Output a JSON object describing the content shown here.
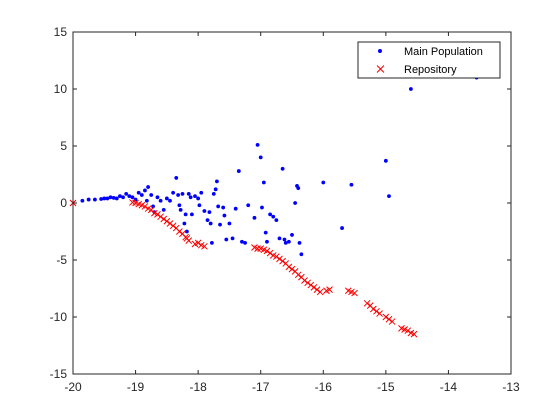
{
  "chart_data": {
    "type": "scatter",
    "title": "",
    "xlabel": "",
    "ylabel": "",
    "xlim": [
      -20,
      -13
    ],
    "ylim": [
      -15,
      15
    ],
    "xticks": [
      -20,
      -19,
      -18,
      -17,
      -16,
      -15,
      -14,
      -13
    ],
    "yticks": [
      -15,
      -10,
      -5,
      0,
      5,
      10,
      15
    ],
    "grid": false,
    "legend_position": "top-right",
    "series": [
      {
        "name": "Main Population",
        "marker": "dot",
        "color": "#0000ff",
        "points": [
          [
            -19.85,
            0.2
          ],
          [
            -19.75,
            0.3
          ],
          [
            -19.65,
            0.3
          ],
          [
            -19.55,
            0.35
          ],
          [
            -19.5,
            0.4
          ],
          [
            -19.45,
            0.4
          ],
          [
            -19.4,
            0.5
          ],
          [
            -19.35,
            0.45
          ],
          [
            -19.3,
            0.4
          ],
          [
            -19.25,
            0.6
          ],
          [
            -19.2,
            0.5
          ],
          [
            -19.15,
            0.8
          ],
          [
            -19.1,
            0.6
          ],
          [
            -19.05,
            0.5
          ],
          [
            -19.0,
            0.3
          ],
          [
            -18.95,
            0.9
          ],
          [
            -18.9,
            0.7
          ],
          [
            -18.85,
            1.1
          ],
          [
            -18.8,
            1.4
          ],
          [
            -18.82,
            0.2
          ],
          [
            -18.75,
            0.7
          ],
          [
            -18.72,
            -0.3
          ],
          [
            -18.7,
            -0.8
          ],
          [
            -18.65,
            0.5
          ],
          [
            -18.6,
            0.2
          ],
          [
            -18.55,
            -0.6
          ],
          [
            -18.5,
            0.4
          ],
          [
            -18.45,
            0.2
          ],
          [
            -18.4,
            0.9
          ],
          [
            -18.35,
            2.2
          ],
          [
            -18.32,
            0.7
          ],
          [
            -18.3,
            -0.2
          ],
          [
            -18.28,
            -0.6
          ],
          [
            -18.25,
            0.8
          ],
          [
            -18.22,
            -1.8
          ],
          [
            -18.2,
            -1.0
          ],
          [
            -18.18,
            -2.5
          ],
          [
            -18.15,
            0.8
          ],
          [
            -18.12,
            0.5
          ],
          [
            -18.1,
            -1.0
          ],
          [
            -18.05,
            0.6
          ],
          [
            -18.0,
            0.4
          ],
          [
            -17.98,
            -0.2
          ],
          [
            -17.95,
            0.9
          ],
          [
            -17.9,
            -0.7
          ],
          [
            -17.85,
            -1.5
          ],
          [
            -17.82,
            -0.8
          ],
          [
            -17.8,
            -1.8
          ],
          [
            -17.78,
            -3.5
          ],
          [
            -17.75,
            0.8
          ],
          [
            -17.72,
            1.2
          ],
          [
            -17.7,
            1.9
          ],
          [
            -17.68,
            -0.3
          ],
          [
            -17.65,
            -1.9
          ],
          [
            -17.6,
            -0.4
          ],
          [
            -17.58,
            -1.1
          ],
          [
            -17.55,
            -3.2
          ],
          [
            -17.5,
            -1.8
          ],
          [
            -17.45,
            -3.1
          ],
          [
            -17.4,
            -0.5
          ],
          [
            -17.35,
            2.8
          ],
          [
            -17.3,
            -3.4
          ],
          [
            -17.25,
            -3.5
          ],
          [
            -17.2,
            -0.2
          ],
          [
            -17.1,
            -1.3
          ],
          [
            -17.05,
            5.1
          ],
          [
            -17.0,
            4.0
          ],
          [
            -16.98,
            -0.4
          ],
          [
            -16.95,
            1.8
          ],
          [
            -16.92,
            -2.6
          ],
          [
            -16.9,
            -3.4
          ],
          [
            -16.85,
            -1.0
          ],
          [
            -16.8,
            -1.2
          ],
          [
            -16.75,
            -1.5
          ],
          [
            -16.7,
            -3.1
          ],
          [
            -16.65,
            3.0
          ],
          [
            -16.62,
            -3.2
          ],
          [
            -16.6,
            -3.5
          ],
          [
            -16.55,
            -3.4
          ],
          [
            -16.5,
            -2.8
          ],
          [
            -16.45,
            0.0
          ],
          [
            -16.42,
            1.5
          ],
          [
            -16.4,
            1.3
          ],
          [
            -16.38,
            -3.5
          ],
          [
            -16.35,
            -4.5
          ],
          [
            -16.0,
            1.8
          ],
          [
            -15.7,
            -2.2
          ],
          [
            -15.55,
            1.6
          ],
          [
            -15.0,
            3.7
          ],
          [
            -14.95,
            0.6
          ],
          [
            -14.6,
            10.0
          ],
          [
            -13.55,
            11.0
          ]
        ]
      },
      {
        "name": "Repository",
        "marker": "cross",
        "color": "#ff0000",
        "points": [
          [
            -20.0,
            0.0
          ],
          [
            -19.05,
            0.05
          ],
          [
            -19.0,
            0.0
          ],
          [
            -18.95,
            -0.1
          ],
          [
            -18.9,
            -0.2
          ],
          [
            -18.85,
            -0.3
          ],
          [
            -18.8,
            -0.5
          ],
          [
            -18.75,
            -0.6
          ],
          [
            -18.7,
            -0.9
          ],
          [
            -18.65,
            -1.0
          ],
          [
            -18.6,
            -1.2
          ],
          [
            -18.55,
            -1.4
          ],
          [
            -18.5,
            -1.6
          ],
          [
            -18.45,
            -1.8
          ],
          [
            -18.4,
            -2.0
          ],
          [
            -18.35,
            -2.2
          ],
          [
            -18.3,
            -2.5
          ],
          [
            -18.25,
            -2.7
          ],
          [
            -18.2,
            -3.0
          ],
          [
            -18.18,
            -3.1
          ],
          [
            -18.15,
            -3.3
          ],
          [
            -18.05,
            -3.6
          ],
          [
            -18.0,
            -3.5
          ],
          [
            -17.95,
            -3.7
          ],
          [
            -17.9,
            -3.8
          ],
          [
            -17.1,
            -3.9
          ],
          [
            -17.05,
            -4.0
          ],
          [
            -17.0,
            -4.0
          ],
          [
            -16.95,
            -4.1
          ],
          [
            -16.9,
            -4.2
          ],
          [
            -16.85,
            -4.4
          ],
          [
            -16.8,
            -4.6
          ],
          [
            -16.75,
            -4.7
          ],
          [
            -16.7,
            -4.9
          ],
          [
            -16.65,
            -5.1
          ],
          [
            -16.6,
            -5.3
          ],
          [
            -16.55,
            -5.6
          ],
          [
            -16.5,
            -5.8
          ],
          [
            -16.45,
            -6.0
          ],
          [
            -16.4,
            -6.3
          ],
          [
            -16.35,
            -6.5
          ],
          [
            -16.3,
            -6.8
          ],
          [
            -16.25,
            -7.0
          ],
          [
            -16.2,
            -7.2
          ],
          [
            -16.15,
            -7.4
          ],
          [
            -16.1,
            -7.6
          ],
          [
            -16.05,
            -7.8
          ],
          [
            -15.95,
            -7.7
          ],
          [
            -15.9,
            -7.6
          ],
          [
            -15.6,
            -7.7
          ],
          [
            -15.55,
            -7.8
          ],
          [
            -15.5,
            -7.9
          ],
          [
            -15.3,
            -8.8
          ],
          [
            -15.25,
            -9.0
          ],
          [
            -15.2,
            -9.3
          ],
          [
            -15.15,
            -9.5
          ],
          [
            -15.1,
            -9.7
          ],
          [
            -15.0,
            -10.0
          ],
          [
            -14.95,
            -10.2
          ],
          [
            -14.9,
            -10.4
          ],
          [
            -14.75,
            -11.0
          ],
          [
            -14.7,
            -11.1
          ],
          [
            -14.65,
            -11.2
          ],
          [
            -14.6,
            -11.4
          ],
          [
            -14.55,
            -11.5
          ]
        ]
      }
    ]
  }
}
